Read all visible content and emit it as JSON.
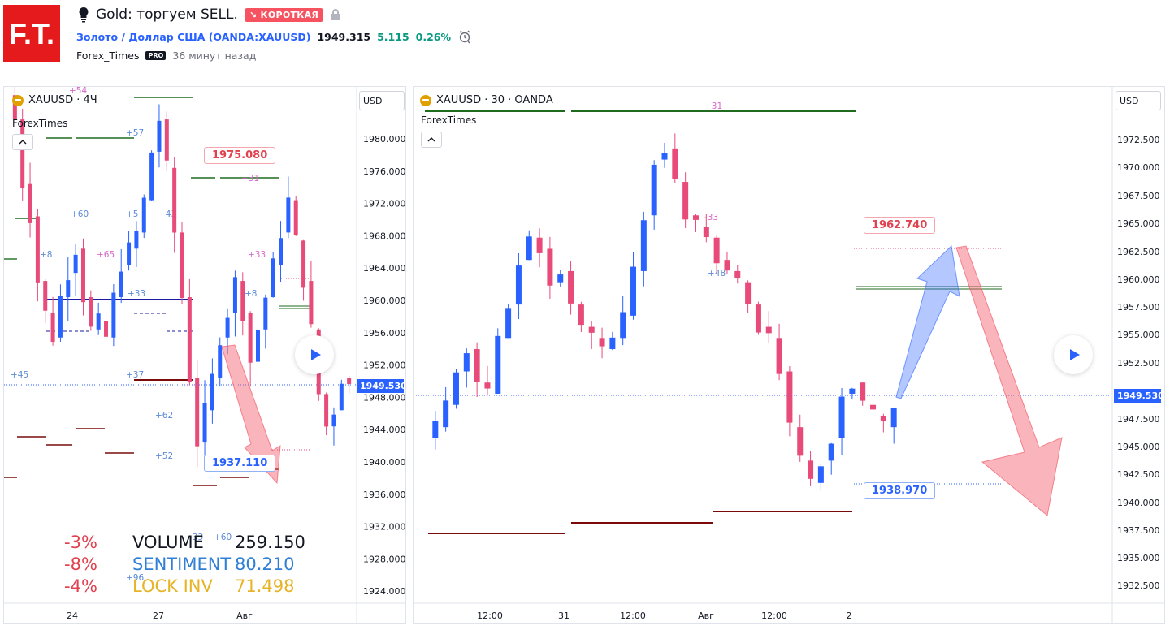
{
  "header": {
    "title": "Gold: торгуем SELL.",
    "direction_badge": "↘ КОРОТКАЯ",
    "symbol_link": "Золото / Доллар США (OANDA:XAUUSD)",
    "last_price": "1949.315",
    "change_abs": "5.115",
    "change_pct": "0.26%",
    "author": "Forex_Times",
    "author_badge": "PRO",
    "published": "36 минут назад",
    "logo_text": "F.T."
  },
  "colors": {
    "accent_red": "#f7525f",
    "up_candle": "#2962ff",
    "down_candle": "#e84a7a",
    "link_blue": "#2962ff",
    "positive": "#089981"
  },
  "left_chart": {
    "symbol_label": "XAUUSD · 4Ч",
    "source": "ForexTimes",
    "currency": "USD",
    "current_price": "1949.530",
    "callout_high": "1975.080",
    "callout_low": "1937.110",
    "y_ticks": [
      "1980.000",
      "1976.000",
      "1972.000",
      "1968.000",
      "1964.000",
      "1960.000",
      "1956.000",
      "1952.000",
      "1948.000",
      "1944.000",
      "1940.000",
      "1936.000",
      "1932.000",
      "1928.000",
      "1924.000"
    ],
    "x_ticks": [
      "24",
      "27",
      "Авг"
    ],
    "level_labels": [
      "+54",
      "+57",
      "+60",
      "+8",
      "+65",
      "+5",
      "+43",
      "+33",
      "+33",
      "+8",
      "+45",
      "+37",
      "+62",
      "+52",
      "+31",
      "-33",
      "+60",
      "+96"
    ],
    "stats": [
      {
        "pct": "-3%",
        "name": "VOLUME",
        "value": "259.150",
        "color": "#131722"
      },
      {
        "pct": "-8%",
        "name": "SENTIMENT",
        "value": "80.210",
        "color": "#2f7fd6"
      },
      {
        "pct": "-4%",
        "name": "LOCK INV",
        "value": "71.498",
        "color": "#e6b426"
      }
    ]
  },
  "right_chart": {
    "symbol_label": "XAUUSD · 30 · OANDA",
    "source": "ForexTimes",
    "currency": "USD",
    "current_price": "1949.530",
    "callout_high": "1962.740",
    "callout_low": "1938.970",
    "y_ticks": [
      "1972.500",
      "1970.000",
      "1967.500",
      "1965.000",
      "1962.500",
      "1960.000",
      "1957.500",
      "1955.000",
      "1952.500",
      "1947.500",
      "1945.000",
      "1942.500",
      "1940.000",
      "1937.500",
      "1935.000",
      "1932.500"
    ],
    "x_ticks": [
      "12:00",
      "31",
      "12:00",
      "Авг",
      "12:00",
      "2"
    ],
    "level_labels": [
      "+31",
      "+48",
      "-33"
    ]
  }
}
